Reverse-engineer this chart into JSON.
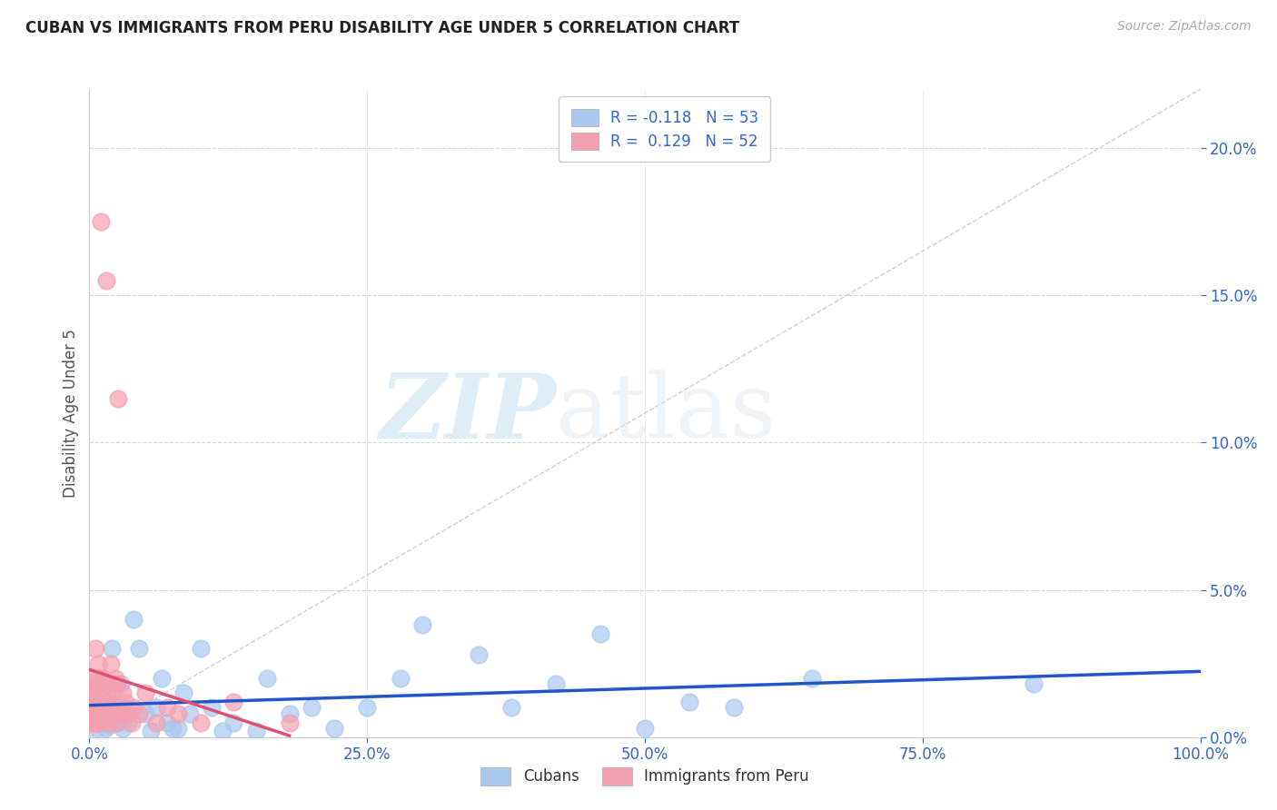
{
  "title": "CUBAN VS IMMIGRANTS FROM PERU DISABILITY AGE UNDER 5 CORRELATION CHART",
  "source": "Source: ZipAtlas.com",
  "ylabel": "Disability Age Under 5",
  "xlim": [
    0.0,
    1.0
  ],
  "ylim": [
    0.0,
    0.22
  ],
  "xticks": [
    0.0,
    0.25,
    0.5,
    0.75,
    1.0
  ],
  "xticklabels": [
    "0.0%",
    "25.0%",
    "50.0%",
    "75.0%",
    "100.0%"
  ],
  "yticks_right": [
    0.0,
    0.05,
    0.1,
    0.15,
    0.2
  ],
  "yticklabels_right": [
    "0.0%",
    "5.0%",
    "10.0%",
    "15.0%",
    "20.0%"
  ],
  "legend_labels": [
    "Cubans",
    "Immigrants from Peru"
  ],
  "cubans_color": "#a8c8f0",
  "peru_color": "#f4a0b0",
  "cubans_line_color": "#2255cc",
  "peru_line_color": "#e05070",
  "diagonal_color": "#cccccc",
  "R_cubans": -0.118,
  "N_cubans": 53,
  "R_peru": 0.129,
  "N_peru": 52,
  "cubans_x": [
    0.002,
    0.003,
    0.004,
    0.005,
    0.006,
    0.007,
    0.008,
    0.009,
    0.01,
    0.011,
    0.012,
    0.014,
    0.015,
    0.016,
    0.018,
    0.02,
    0.022,
    0.025,
    0.028,
    0.03,
    0.035,
    0.04,
    0.045,
    0.05,
    0.055,
    0.06,
    0.065,
    0.07,
    0.075,
    0.08,
    0.085,
    0.09,
    0.1,
    0.11,
    0.12,
    0.13,
    0.15,
    0.16,
    0.18,
    0.2,
    0.22,
    0.25,
    0.28,
    0.3,
    0.35,
    0.38,
    0.42,
    0.46,
    0.5,
    0.54,
    0.58,
    0.65,
    0.85
  ],
  "cubans_y": [
    0.01,
    0.005,
    0.012,
    0.008,
    0.015,
    0.003,
    0.02,
    0.007,
    0.018,
    0.005,
    0.01,
    0.003,
    0.008,
    0.012,
    0.004,
    0.03,
    0.007,
    0.005,
    0.018,
    0.003,
    0.005,
    0.04,
    0.03,
    0.008,
    0.002,
    0.01,
    0.02,
    0.005,
    0.003,
    0.003,
    0.015,
    0.008,
    0.03,
    0.01,
    0.002,
    0.005,
    0.002,
    0.02,
    0.008,
    0.01,
    0.003,
    0.01,
    0.02,
    0.038,
    0.028,
    0.01,
    0.018,
    0.035,
    0.003,
    0.012,
    0.01,
    0.02,
    0.018
  ],
  "peru_x": [
    0.001,
    0.002,
    0.002,
    0.003,
    0.003,
    0.004,
    0.004,
    0.005,
    0.005,
    0.006,
    0.006,
    0.007,
    0.007,
    0.008,
    0.008,
    0.009,
    0.009,
    0.01,
    0.01,
    0.011,
    0.012,
    0.013,
    0.013,
    0.014,
    0.015,
    0.015,
    0.016,
    0.017,
    0.018,
    0.019,
    0.02,
    0.021,
    0.022,
    0.023,
    0.024,
    0.025,
    0.026,
    0.027,
    0.028,
    0.03,
    0.032,
    0.035,
    0.038,
    0.04,
    0.045,
    0.05,
    0.06,
    0.07,
    0.08,
    0.1,
    0.13,
    0.18
  ],
  "peru_y": [
    0.005,
    0.01,
    0.015,
    0.005,
    0.017,
    0.008,
    0.02,
    0.012,
    0.03,
    0.008,
    0.018,
    0.005,
    0.012,
    0.025,
    0.005,
    0.018,
    0.01,
    0.175,
    0.01,
    0.02,
    0.01,
    0.015,
    0.008,
    0.018,
    0.155,
    0.008,
    0.01,
    0.005,
    0.012,
    0.025,
    0.008,
    0.015,
    0.01,
    0.02,
    0.005,
    0.018,
    0.115,
    0.008,
    0.01,
    0.015,
    0.012,
    0.008,
    0.005,
    0.01,
    0.008,
    0.015,
    0.005,
    0.01,
    0.008,
    0.005,
    0.012,
    0.005
  ],
  "watermark_zip": "ZIP",
  "watermark_atlas": "atlas",
  "background_color": "#ffffff",
  "grid_color": "#cccccc",
  "tick_color": "#3366cc",
  "title_color": "#222222",
  "source_color": "#aaaaaa",
  "ylabel_color": "#555555"
}
